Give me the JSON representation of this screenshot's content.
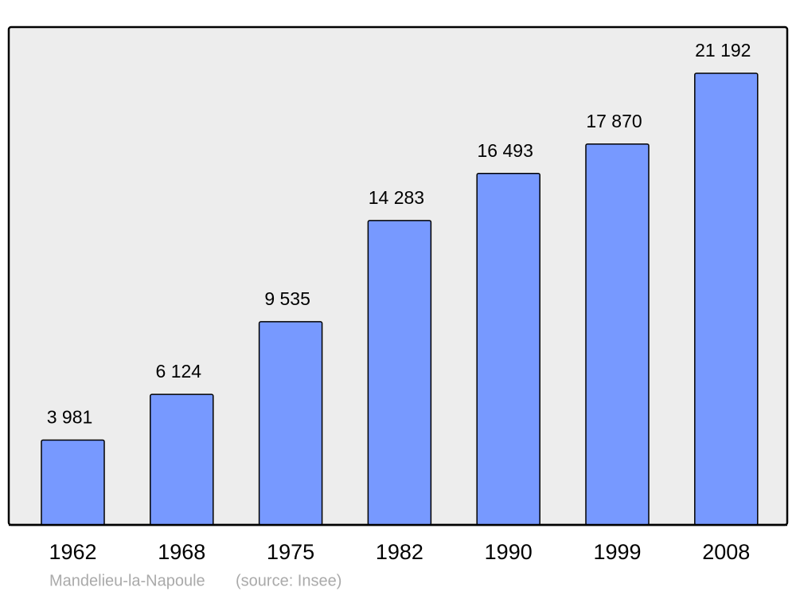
{
  "chart_data": {
    "type": "bar",
    "categories": [
      "1962",
      "1968",
      "1975",
      "1982",
      "1990",
      "1999",
      "2008"
    ],
    "values": [
      3981,
      6124,
      9535,
      14283,
      16493,
      17870,
      21192
    ],
    "value_labels": [
      "3 981",
      "6 124",
      "9 535",
      "14 283",
      "16 493",
      "17 870",
      "21 192"
    ],
    "color": "#7799ff",
    "caption": "Mandelieu-la-Napoule",
    "source": "(source: Insee)"
  }
}
